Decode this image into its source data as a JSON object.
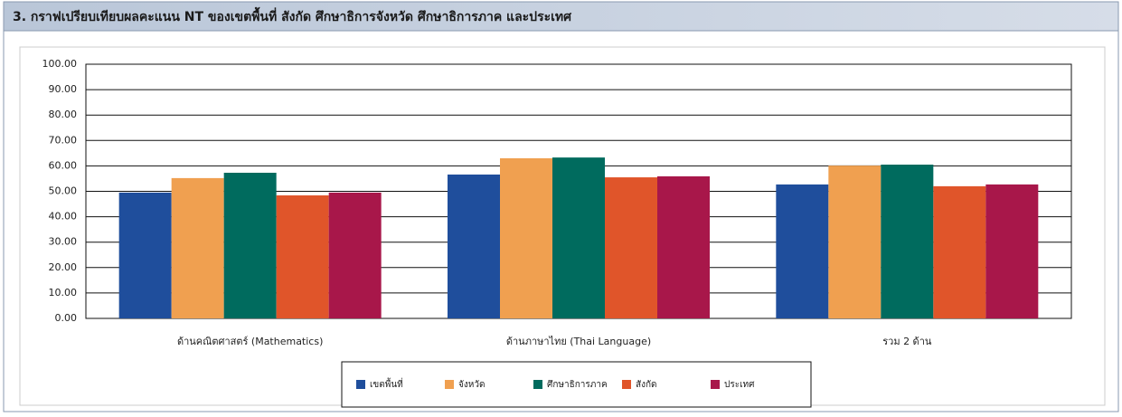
{
  "chart_data": {
    "type": "bar",
    "title": "3. กราฟเปรียบเทียบผลคะแนน NT ของเขตพื้นที่ สังกัด ศึกษาธิการจังหวัด ศึกษาธิการภาค และประเทศ",
    "categories": [
      "ด้านคณิตศาสตร์ (Mathematics)",
      "ด้านภาษาไทย (Thai Language)",
      "รวม 2 ด้าน"
    ],
    "series": [
      {
        "name": "เขตพื้นที่",
        "color": "#1f4e9c",
        "values": [
          49.5,
          56.6,
          52.7
        ]
      },
      {
        "name": "จังหวัด",
        "color": "#f0a050",
        "values": [
          55.2,
          63.0,
          60.1
        ]
      },
      {
        "name": "ศึกษาธิการภาค",
        "color": "#006b5e",
        "values": [
          57.3,
          63.3,
          60.5
        ]
      },
      {
        "name": "สังกัด",
        "color": "#e0552a",
        "values": [
          48.4,
          55.5,
          52.0
        ]
      },
      {
        "name": "ประเทศ",
        "color": "#a8174a",
        "values": [
          49.5,
          55.9,
          52.7
        ]
      }
    ],
    "ylim": [
      0,
      100
    ],
    "yticks": [
      {
        "value": 0,
        "label": "0.00"
      },
      {
        "value": 10,
        "label": "10.00"
      },
      {
        "value": 20,
        "label": "20.00"
      },
      {
        "value": 30,
        "label": "30.00"
      },
      {
        "value": 40,
        "label": "40.00"
      },
      {
        "value": 50,
        "label": "50.00"
      },
      {
        "value": 60,
        "label": "60.00"
      },
      {
        "value": 70,
        "label": "70.00"
      },
      {
        "value": 80,
        "label": "80.00"
      },
      {
        "value": 90,
        "label": "90.00"
      },
      {
        "value": 100,
        "label": "100.00"
      }
    ],
    "grid": true,
    "legend": "bottom"
  }
}
